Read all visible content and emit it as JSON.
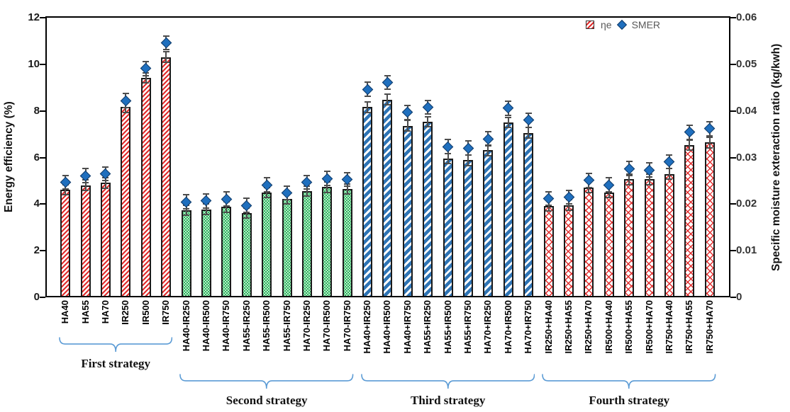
{
  "chart_data": {
    "type": "bar",
    "title": "",
    "grid": false,
    "legend_position": "top-right-inside",
    "legend": {
      "eta": "ηe",
      "smer": "SMER"
    },
    "left_axis_label": "Energy efficiency (%)",
    "right_axis_label": "Specific moisture exteraction ratio (kg/kwh)",
    "left_ylim": [
      0,
      12
    ],
    "right_ylim": [
      0,
      0.06
    ],
    "left_ticks": [
      {
        "v": 0,
        "label": "0"
      },
      {
        "v": 2,
        "label": "2"
      },
      {
        "v": 4,
        "label": "4"
      },
      {
        "v": 6,
        "label": "6"
      },
      {
        "v": 8,
        "label": "8"
      },
      {
        "v": 10,
        "label": "10"
      },
      {
        "v": 12,
        "label": "12"
      }
    ],
    "right_ticks": [
      {
        "v": 0,
        "label": "0"
      },
      {
        "v": 0.01,
        "label": "0.01"
      },
      {
        "v": 0.02,
        "label": "0.02"
      },
      {
        "v": 0.03,
        "label": "0.03"
      },
      {
        "v": 0.04,
        "label": "0.04"
      },
      {
        "v": 0.05,
        "label": "0.05"
      },
      {
        "v": 0.06,
        "label": "0.06"
      }
    ],
    "eta_err": 0.22,
    "smer_err": 0.0015,
    "marker_color": "#1f6fbe",
    "errorbar_color": "#4d4d4d",
    "brace_color": "#5b9bd5",
    "groups": [
      {
        "label": "First strategy",
        "pattern": "red-diagonal",
        "items": [
          {
            "category": "HA40",
            "eta": 4.55,
            "smer": 0.0244
          },
          {
            "category": "HA55",
            "eta": 4.75,
            "smer": 0.0258
          },
          {
            "category": "HA70",
            "eta": 4.85,
            "smer": 0.0262
          },
          {
            "category": "IR250",
            "eta": 8.1,
            "smer": 0.0419
          },
          {
            "category": "IR500",
            "eta": 9.35,
            "smer": 0.0488
          },
          {
            "category": "IR750",
            "eta": 10.25,
            "smer": 0.0543
          }
        ]
      },
      {
        "label": "Second strategy",
        "pattern": "green-dots",
        "items": [
          {
            "category": "HA40-IR250",
            "eta": 3.67,
            "smer": 0.0202
          },
          {
            "category": "HA40-IR500",
            "eta": 3.72,
            "smer": 0.0204
          },
          {
            "category": "HA40-IR750",
            "eta": 3.82,
            "smer": 0.0208
          },
          {
            "category": "HA55-IR250",
            "eta": 3.55,
            "smer": 0.0194
          },
          {
            "category": "HA55-IR500",
            "eta": 4.43,
            "smer": 0.0238
          },
          {
            "category": "HA55-IR750",
            "eta": 4.16,
            "smer": 0.0221
          },
          {
            "category": "HA70-IR250",
            "eta": 4.5,
            "smer": 0.0244
          },
          {
            "category": "HA70-IR500",
            "eta": 4.67,
            "smer": 0.0252
          },
          {
            "category": "HA70-IR750",
            "eta": 4.58,
            "smer": 0.025
          }
        ]
      },
      {
        "label": "Third strategy",
        "pattern": "blue-diagonal",
        "items": [
          {
            "category": "HA40+IR250",
            "eta": 8.1,
            "smer": 0.0443
          },
          {
            "category": "HA40+IR500",
            "eta": 8.43,
            "smer": 0.0458
          },
          {
            "category": "HA40+IR750",
            "eta": 7.3,
            "smer": 0.0394
          },
          {
            "category": "HA55+IR250",
            "eta": 7.48,
            "smer": 0.0405
          },
          {
            "category": "HA55+IR500",
            "eta": 5.9,
            "smer": 0.032
          },
          {
            "category": "HA55+IR750",
            "eta": 5.82,
            "smer": 0.0317
          },
          {
            "category": "HA70+IR250",
            "eta": 6.25,
            "smer": 0.0337
          },
          {
            "category": "HA70+IR500",
            "eta": 7.45,
            "smer": 0.0403
          },
          {
            "category": "HA70+IR750",
            "eta": 7.0,
            "smer": 0.0377
          }
        ]
      },
      {
        "label": "Fourth strategy",
        "pattern": "red-cross",
        "items": [
          {
            "category": "IR250+HA40",
            "eta": 3.87,
            "smer": 0.0209
          },
          {
            "category": "IR250+HA55",
            "eta": 3.9,
            "smer": 0.0212
          },
          {
            "category": "IR250+HA70",
            "eta": 4.66,
            "smer": 0.0248
          },
          {
            "category": "IR500+HA40",
            "eta": 4.45,
            "smer": 0.0238
          },
          {
            "category": "IR500+HA55",
            "eta": 5.0,
            "smer": 0.0273
          },
          {
            "category": "IR500+HA70",
            "eta": 5.0,
            "smer": 0.027
          },
          {
            "category": "IR750+HA40",
            "eta": 5.24,
            "smer": 0.0288
          },
          {
            "category": "IR750+HA55",
            "eta": 6.47,
            "smer": 0.0351
          },
          {
            "category": "IR750+HA70",
            "eta": 6.58,
            "smer": 0.0359
          }
        ]
      }
    ]
  }
}
